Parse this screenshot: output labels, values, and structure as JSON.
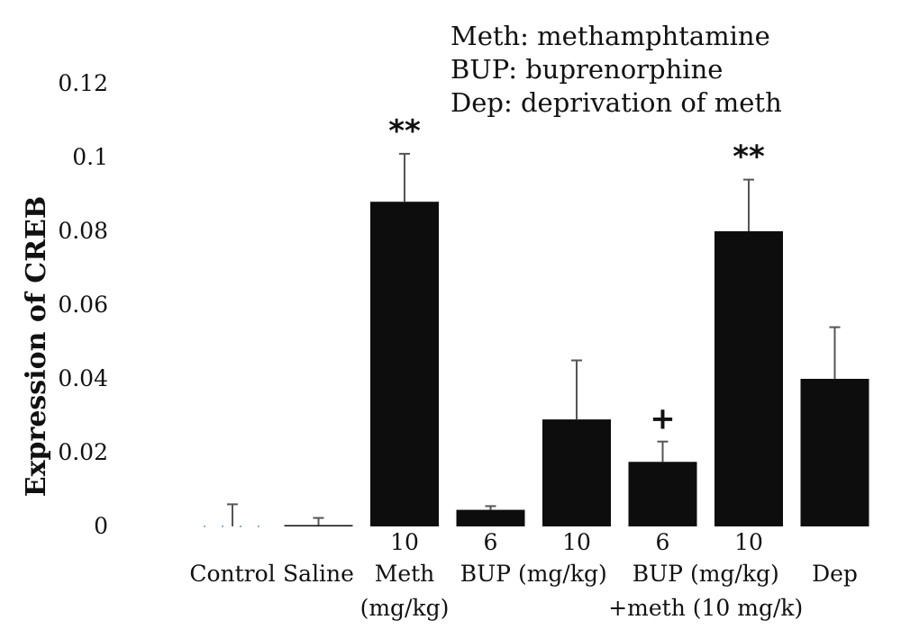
{
  "chart_data": {
    "type": "bar",
    "ylabel": "Expression of CREB",
    "ylim": [
      0,
      0.12
    ],
    "yticks": [
      {
        "value": 0,
        "label": "0"
      },
      {
        "value": 0.02,
        "label": "0.02"
      },
      {
        "value": 0.04,
        "label": "0.04"
      },
      {
        "value": 0.06,
        "label": "0.06"
      },
      {
        "value": 0.08,
        "label": "0.08"
      },
      {
        "value": 0.1,
        "label": "0.1"
      },
      {
        "value": 0.12,
        "label": "0.12"
      }
    ],
    "grid": false,
    "bar_color": "#0d0d0d",
    "error_color": "#555555",
    "legend_text": [
      "Meth: methamphtamine",
      "BUP: buprenorphine",
      "Dep: deprivation of meth"
    ],
    "legend_position": "top-right",
    "x_label_rows": [
      [
        {
          "text": "10",
          "cat": 2
        },
        {
          "text": "6",
          "cat": 3
        },
        {
          "text": "10",
          "cat": 4
        },
        {
          "text": "6",
          "cat": 5
        },
        {
          "text": "10",
          "cat": 6
        }
      ],
      [
        {
          "text": "Control",
          "cat": 0
        },
        {
          "text": "Saline",
          "cat": 1
        },
        {
          "text": "Meth",
          "cat": 2
        },
        {
          "text": "BUP (mg/kg)",
          "cat": 3.5
        },
        {
          "text": "BUP (mg/kg)",
          "cat": 5.5
        },
        {
          "text": "Dep",
          "cat": 7
        }
      ],
      [
        {
          "text": "(mg/kg)",
          "cat": 2
        },
        {
          "text": "+meth (10 mg/k)",
          "cat": 5.5
        }
      ]
    ],
    "bars": [
      {
        "name": "Control",
        "value": 0.0,
        "error": 0.006
      },
      {
        "name": "Saline",
        "value": 0.0003,
        "error": 0.002
      },
      {
        "name": "Meth 10 mg/kg",
        "value": 0.088,
        "error": 0.013
      },
      {
        "name": "BUP 6 mg/kg",
        "value": 0.0045,
        "error": 0.001
      },
      {
        "name": "BUP 10 mg/kg",
        "value": 0.029,
        "error": 0.016
      },
      {
        "name": "BUP 6 mg/kg + meth 10 mg/kg",
        "value": 0.0175,
        "error": 0.0055
      },
      {
        "name": "BUP 10 mg/kg + meth 10 mg/kg",
        "value": 0.08,
        "error": 0.014
      },
      {
        "name": "Dep",
        "value": 0.04,
        "error": 0.014
      }
    ],
    "annotations": [
      {
        "text": "**",
        "cat": 2
      },
      {
        "text": "+",
        "cat": 5
      },
      {
        "text": "**",
        "cat": 6
      }
    ]
  }
}
